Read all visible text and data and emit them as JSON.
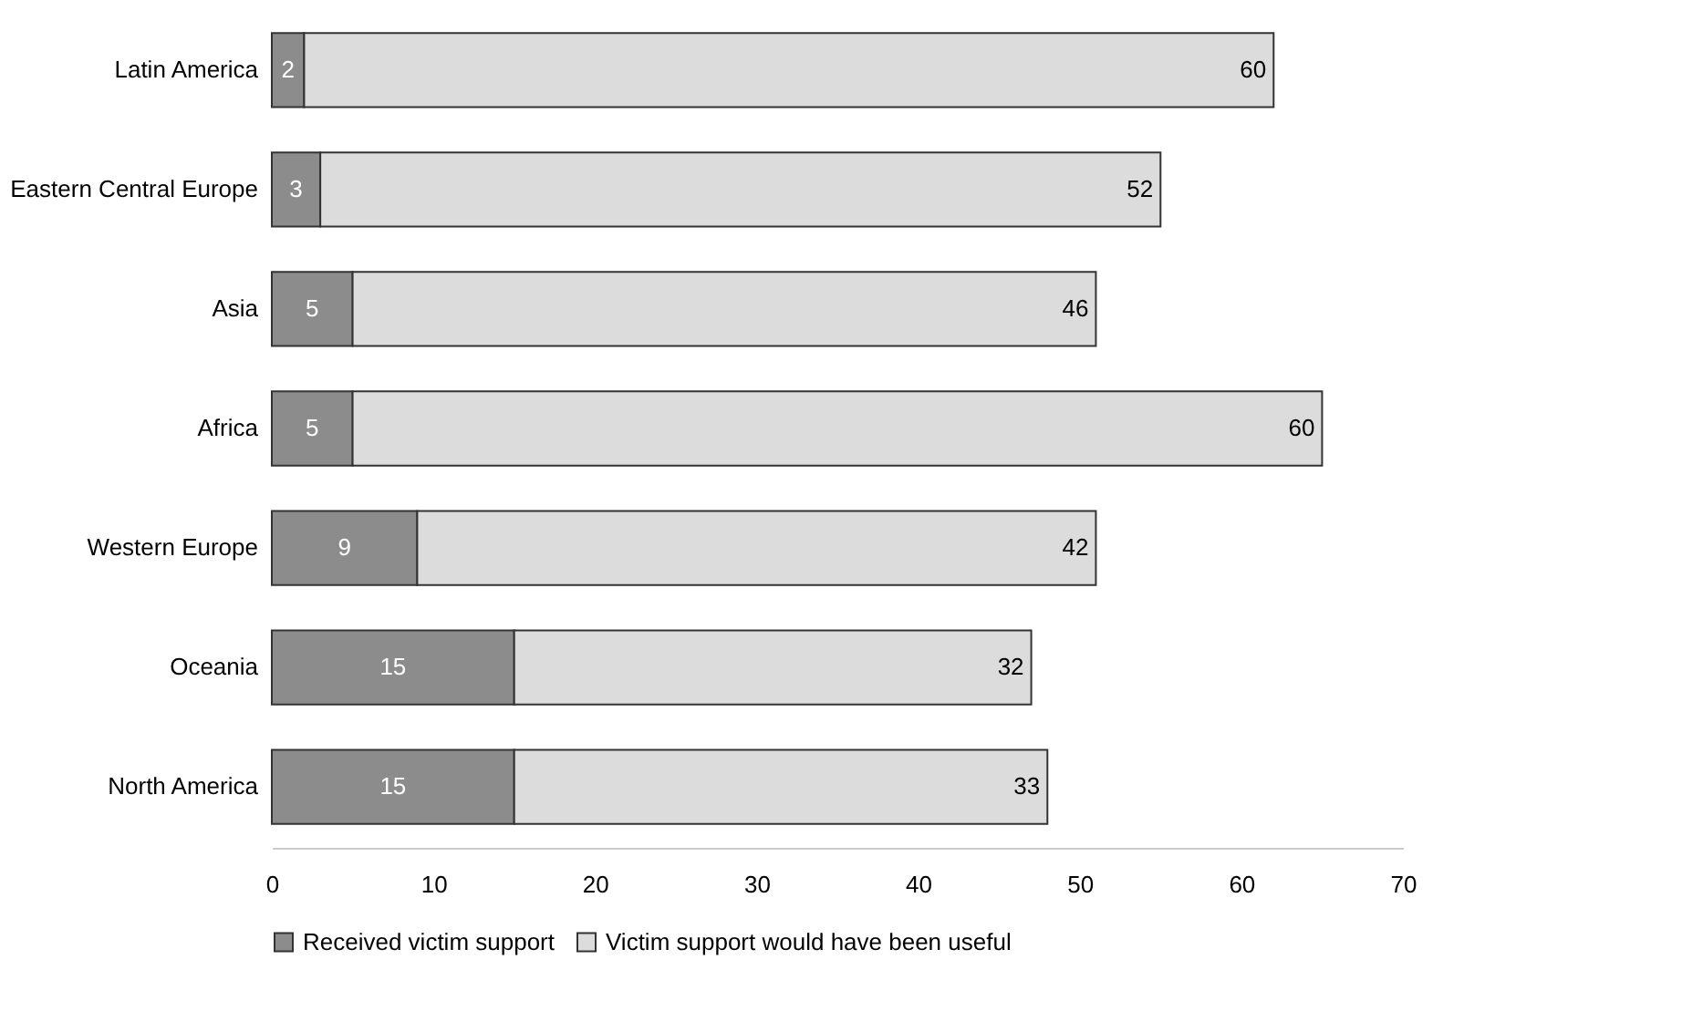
{
  "chart_data": {
    "type": "bar",
    "orientation": "horizontal",
    "stacked": true,
    "categories": [
      "Latin America",
      "Eastern Central Europe",
      "Asia",
      "Africa",
      "Western Europe",
      "Oceania",
      "North America"
    ],
    "series": [
      {
        "name": "Received victim support",
        "color": "#8c8c8c",
        "values": [
          2,
          3,
          5,
          5,
          9,
          15,
          15
        ]
      },
      {
        "name": "Victim support would have been useful",
        "color": "#dcdcdc",
        "values": [
          60,
          52,
          46,
          60,
          42,
          32,
          33
        ]
      }
    ],
    "xlim": [
      0,
      70
    ],
    "xticks": [
      0,
      10,
      20,
      30,
      40,
      50,
      60,
      70
    ],
    "grid": false,
    "legend": "bottom",
    "data_labels": true
  }
}
